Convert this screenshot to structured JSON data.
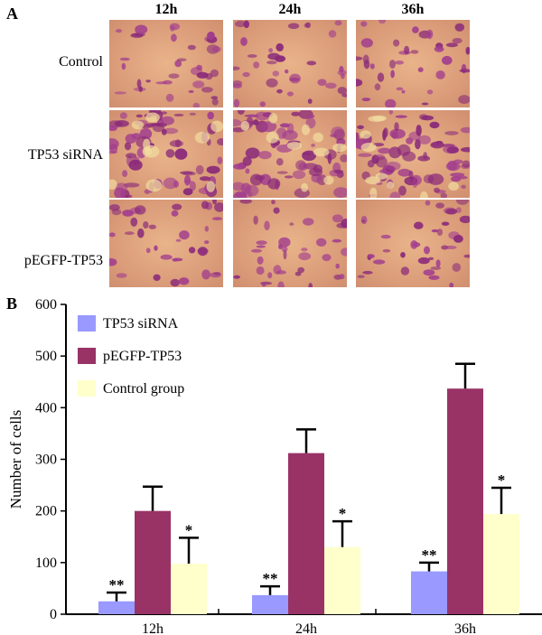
{
  "panel_a": {
    "letter": "A",
    "columns": [
      "12h",
      "24h",
      "36h"
    ],
    "rows": [
      "Control",
      "TP53 siRNA",
      "pEGFP-TP53"
    ]
  },
  "panel_b": {
    "letter": "B"
  },
  "chart_data": {
    "type": "bar",
    "categories": [
      "12h",
      "24h",
      "36h"
    ],
    "ylabel": "Number of cells",
    "xlabel": "",
    "ylim": [
      0,
      600
    ],
    "yticks": [
      0,
      100,
      200,
      300,
      400,
      500,
      600
    ],
    "series": [
      {
        "name": "TP53 siRNA",
        "values": [
          25,
          37,
          83
        ],
        "errors": [
          17,
          17,
          17
        ],
        "marks": [
          "**",
          "**",
          "**"
        ],
        "color": "#9999ff"
      },
      {
        "name": "pEGFP-TP53",
        "values": [
          200,
          312,
          437
        ],
        "errors": [
          47,
          46,
          48
        ],
        "marks": [
          "",
          "",
          ""
        ],
        "color": "#993366"
      },
      {
        "name": "Control group",
        "values": [
          98,
          130,
          194
        ],
        "errors": [
          50,
          50,
          51
        ],
        "marks": [
          "*",
          "*",
          "*"
        ],
        "color": "#ffffcc"
      }
    ],
    "legend_position": "top-left"
  }
}
